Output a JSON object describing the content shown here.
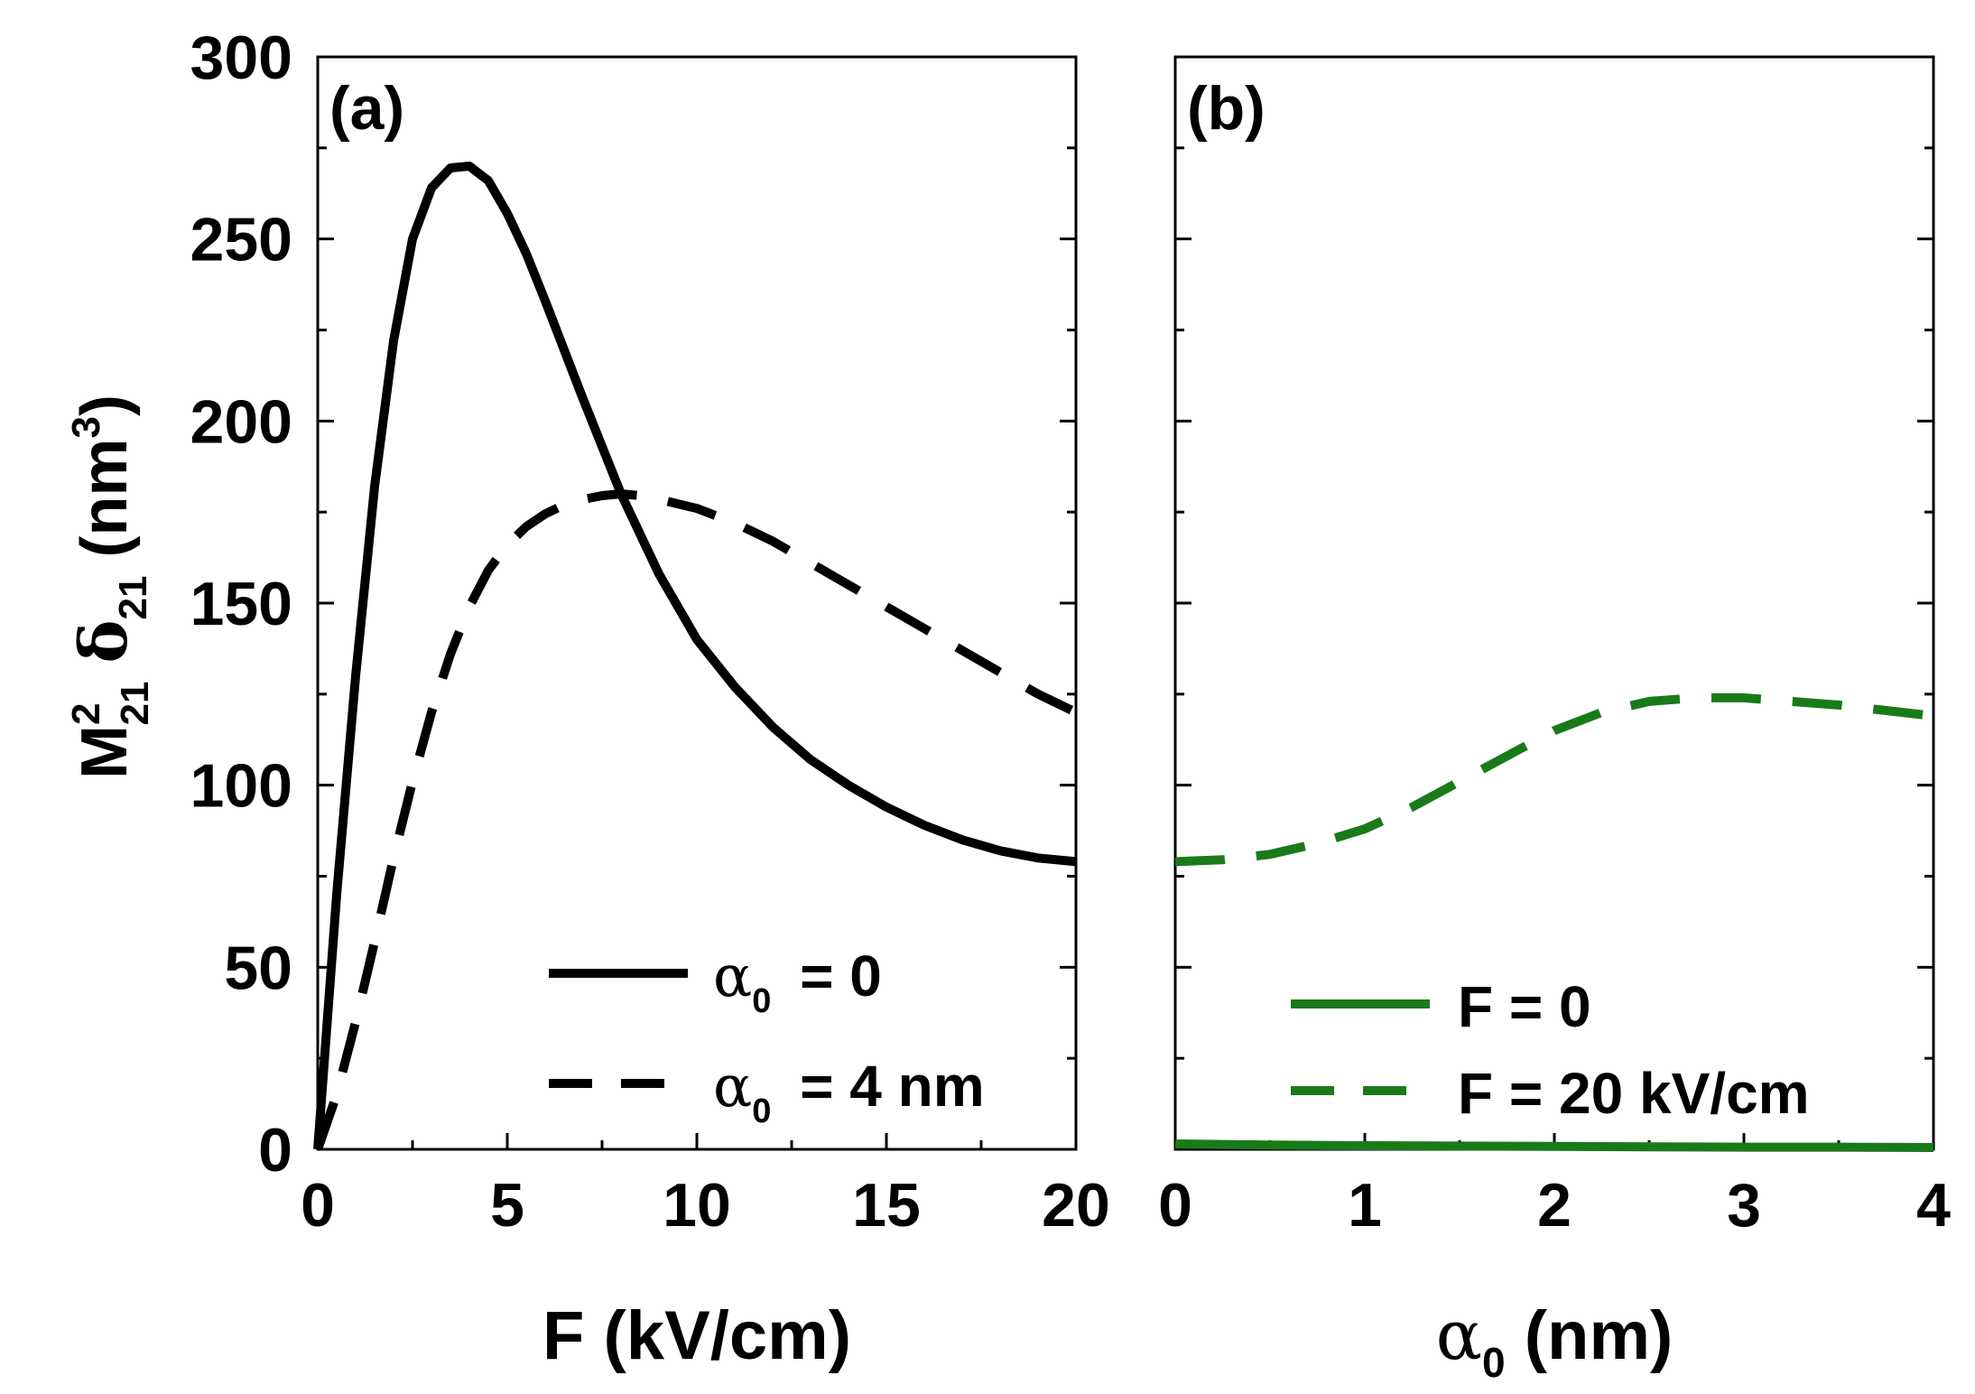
{
  "y_axis_label": {
    "base": "M",
    "sup": "2",
    "sub": "21",
    "delta": "δ",
    "delta_sub": "21",
    "units_open": " (nm",
    "units_sup": "3",
    "units_close": ")"
  },
  "chart_data": [
    {
      "type": "line",
      "panel_label": "(a)",
      "xlabel": "F (kV/cm)",
      "ylabel": "M²₂₁ δ₂₁ (nm³)",
      "xlim": [
        0,
        20
      ],
      "ylim": [
        0,
        300
      ],
      "x_ticks": [
        0,
        5,
        10,
        15,
        20
      ],
      "y_ticks": [
        0,
        50,
        100,
        150,
        200,
        250,
        300
      ],
      "grid": false,
      "legend_position": "bottom-right",
      "series": [
        {
          "name": "α0 = 0",
          "legend_sym": "α",
          "legend_sub": "0",
          "legend_rest": " = 0",
          "color": "#000000",
          "dash": "solid",
          "x": [
            0,
            0.5,
            1,
            1.5,
            2,
            2.5,
            3,
            3.5,
            4,
            4.5,
            5,
            5.5,
            6,
            7,
            8,
            9,
            10,
            11,
            12,
            13,
            14,
            15,
            16,
            17,
            18,
            19,
            20
          ],
          "y": [
            0,
            70,
            130,
            182,
            222,
            250,
            264,
            269.5,
            270,
            266,
            257,
            246,
            233,
            206,
            180,
            158,
            140,
            127,
            116,
            107,
            100,
            94,
            89,
            85,
            82,
            80,
            79
          ]
        },
        {
          "name": "α0 = 4 nm",
          "legend_sym": "α",
          "legend_sub": "0",
          "legend_rest": " = 4 nm",
          "color": "#000000",
          "dash": "dashed",
          "x": [
            0,
            0.5,
            1,
            1.5,
            2,
            2.5,
            3,
            3.5,
            4,
            4.5,
            5,
            5.5,
            6,
            6.5,
            7,
            7.5,
            8,
            8.5,
            9,
            10,
            11,
            12,
            13,
            14,
            15,
            16,
            17,
            18,
            19,
            20
          ],
          "y": [
            0,
            15,
            35,
            57,
            80,
            101,
            120,
            136,
            149,
            159,
            166,
            171,
            174.5,
            177,
            178.5,
            179.5,
            180,
            179.5,
            178.5,
            176,
            172,
            167,
            161,
            155,
            149,
            143,
            137,
            131,
            125,
            120
          ]
        }
      ]
    },
    {
      "type": "line",
      "panel_label": "(b)",
      "xlabel_sym": "α",
      "xlabel_sub": "0",
      "xlabel_rest": " (nm)",
      "xlim": [
        0,
        4
      ],
      "ylim": [
        0,
        300
      ],
      "x_ticks": [
        0,
        1,
        2,
        3,
        4
      ],
      "y_ticks": [
        0,
        50,
        100,
        150,
        200,
        250,
        300
      ],
      "grid": false,
      "legend_position": "bottom-right",
      "series": [
        {
          "name": "F = 0",
          "color": "#1a7a1a",
          "dash": "solid",
          "x": [
            0,
            0.5,
            1,
            1.5,
            2,
            2.5,
            3,
            3.5,
            4
          ],
          "y": [
            1.5,
            1.2,
            1.0,
            0.9,
            0.8,
            0.7,
            0.6,
            0.6,
            0.5
          ]
        },
        {
          "name": "F = 20 kV/cm",
          "color": "#1a7a1a",
          "dash": "dashed",
          "x": [
            0,
            0.25,
            0.5,
            0.75,
            1,
            1.25,
            1.5,
            1.75,
            2,
            2.25,
            2.5,
            2.75,
            3,
            3.25,
            3.5,
            3.75,
            4
          ],
          "y": [
            79,
            79.5,
            81,
            84,
            88,
            94,
            101,
            108,
            115,
            120,
            123,
            124,
            124,
            123,
            122,
            120.5,
            119
          ]
        }
      ]
    }
  ]
}
